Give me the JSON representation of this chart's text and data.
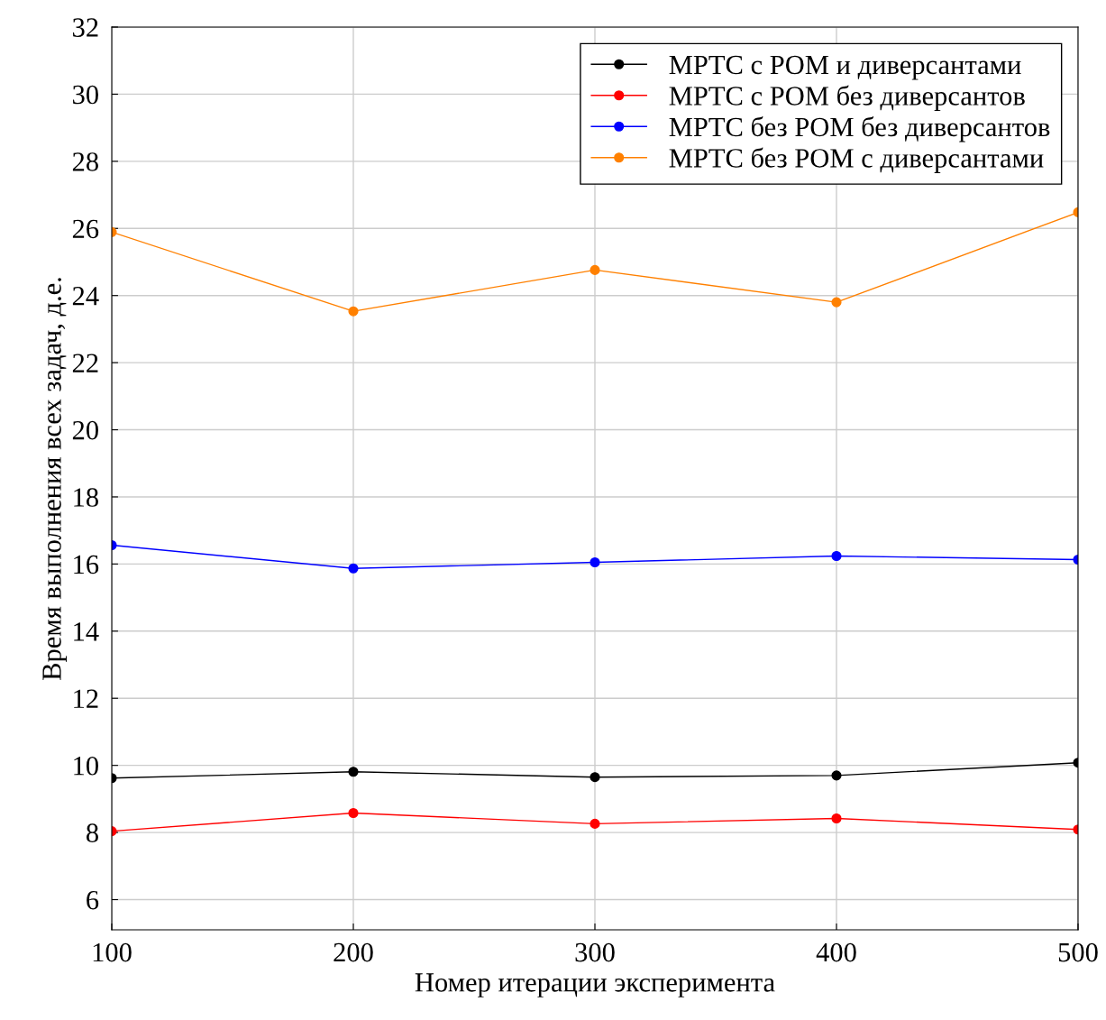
{
  "chart_data": {
    "type": "line",
    "xlabel": "Номер итерации эксперимента",
    "ylabel": "Время выполнения всех задач, д.е.",
    "x": [
      100,
      200,
      300,
      400,
      500
    ],
    "series": [
      {
        "name": "MPTC с POM и диверсантами",
        "color": "#000000",
        "values": [
          9.62,
          9.81,
          9.65,
          9.7,
          10.08
        ]
      },
      {
        "name": "MPTC с POM без диверсантов",
        "color": "#ff0000",
        "values": [
          8.04,
          8.58,
          8.26,
          8.42,
          8.09
        ]
      },
      {
        "name": "MPTC без POM без диверсантов",
        "color": "#0000ff",
        "values": [
          16.56,
          15.87,
          16.05,
          16.24,
          16.13
        ]
      },
      {
        "name": "MPTC без POM с диверсантами",
        "color": "#ff8000",
        "values": [
          25.89,
          23.53,
          24.76,
          23.8,
          26.48
        ]
      }
    ],
    "xlim": [
      100,
      500
    ],
    "xticks": [
      100,
      200,
      300,
      400,
      500
    ],
    "ylim": [
      5.1,
      32
    ],
    "yticks": [
      6,
      8,
      10,
      12,
      14,
      16,
      18,
      20,
      22,
      24,
      26,
      28,
      30,
      32
    ],
    "grid": true,
    "legend": "top right",
    "marker": "circle",
    "line_style": "solid"
  }
}
